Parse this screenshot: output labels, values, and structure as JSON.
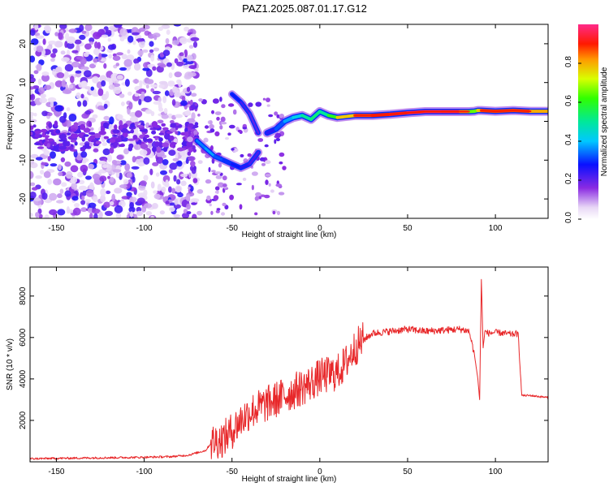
{
  "title": "PAZ1.2025.087.01.17.G12",
  "chart_data": [
    {
      "type": "heatmap",
      "xlabel": "Height of straight line (km)",
      "ylabel": "Frequency (Hz)",
      "xlim": [
        -165,
        130
      ],
      "ylim": [
        -25,
        25
      ],
      "xticks": [
        -150,
        -100,
        -50,
        0,
        50,
        100
      ],
      "yticks": [
        -20,
        -10,
        0,
        10,
        20
      ],
      "colorbar": {
        "label": "Normalized spectral amplitude",
        "range": [
          0,
          1
        ],
        "ticks": [
          0.0,
          0.2,
          0.4,
          0.6,
          0.8
        ],
        "tick_labels": [
          "0.0",
          "0.2",
          "0.4",
          "0.6",
          "0.8"
        ]
      },
      "ridge": {
        "x": [
          -30,
          -25,
          -20,
          -15,
          -10,
          -5,
          0,
          5,
          10,
          20,
          30,
          40,
          50,
          60,
          70,
          80,
          85,
          88,
          90,
          92,
          100,
          110,
          120,
          130
        ],
        "y": [
          -3,
          -2,
          0,
          1,
          1.5,
          0.5,
          2.5,
          1.5,
          1,
          1.5,
          1.5,
          1.8,
          2.2,
          2.5,
          2.5,
          2.5,
          2.5,
          2.6,
          2.8,
          2.8,
          2.6,
          2.8,
          2.6,
          2.6
        ],
        "amplitude": [
          0.2,
          0.3,
          0.35,
          0.4,
          0.45,
          0.55,
          0.5,
          0.5,
          0.7,
          0.85,
          0.9,
          0.9,
          0.95,
          0.97,
          0.97,
          0.95,
          0.7,
          0.6,
          0.7,
          0.85,
          0.9,
          0.85,
          0.9,
          0.7
        ]
      },
      "branch": {
        "x": [
          -70,
          -65,
          -60,
          -55,
          -50,
          -45,
          -40,
          -35
        ],
        "y": [
          -5,
          -7,
          -9,
          -10,
          -11,
          -12,
          -11,
          -8
        ],
        "amplitude": [
          0.3,
          0.4,
          0.35,
          0.3,
          0.3,
          0.25,
          0.25,
          0.2
        ]
      },
      "upper_branch": {
        "x": [
          -50,
          -45,
          -40,
          -35
        ],
        "y": [
          7,
          5,
          2,
          -3
        ],
        "amplitude": [
          0.3,
          0.25,
          0.2,
          0.2
        ]
      }
    },
    {
      "type": "line",
      "xlabel": "Height of straight line (km)",
      "ylabel": "SNR (10 * v/v)",
      "xlim": [
        -165,
        130
      ],
      "ylim": [
        0,
        9400
      ],
      "xticks": [
        -150,
        -100,
        -50,
        0,
        50,
        100
      ],
      "yticks": [
        2000,
        4000,
        6000,
        8000
      ],
      "color": "#e8282a",
      "series": [
        {
          "x": [
            -165,
            -140,
            -120,
            -100,
            -85,
            -75,
            -65,
            -62,
            -60,
            -55,
            -50,
            -45,
            -40,
            -35,
            -30,
            -25,
            -20,
            -15,
            -10,
            -5,
            0,
            5,
            10,
            15,
            20,
            25,
            30,
            40,
            50,
            60,
            70,
            80,
            85,
            88,
            90,
            91,
            92,
            93,
            94,
            96,
            100,
            105,
            110,
            112,
            113,
            115,
            120,
            125,
            130
          ],
          "y": [
            150,
            180,
            200,
            220,
            250,
            320,
            550,
            900,
            1000,
            1100,
            1500,
            2000,
            2400,
            2600,
            2800,
            3000,
            3200,
            3400,
            3600,
            3800,
            4100,
            4200,
            4300,
            4800,
            5500,
            5900,
            6200,
            6300,
            6400,
            6300,
            6350,
            6400,
            6300,
            5200,
            4000,
            3000,
            8800,
            5500,
            6300,
            6200,
            6250,
            6200,
            6150,
            6200,
            6100,
            3200,
            3200,
            3150,
            3100
          ]
        }
      ]
    }
  ]
}
